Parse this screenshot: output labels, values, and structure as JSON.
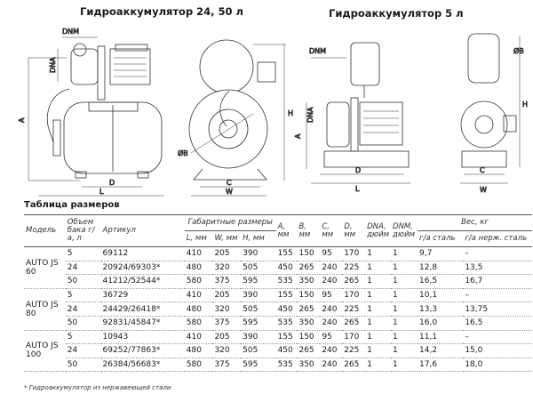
{
  "titles": {
    "left": "Гидроаккумулятор 24, 50 л",
    "right": "Гидроаккумулятор 5 л"
  },
  "drawing_labels": {
    "dnm": "DNM",
    "dna": "DNA",
    "a": "A",
    "h": "H",
    "b": "ØB",
    "d": "D",
    "l": "L",
    "c": "C",
    "w": "W"
  },
  "table": {
    "title": "Таблица размеров",
    "headers": {
      "model": "Модель",
      "volume": "Объем бака г/а, л",
      "article": "Артикул",
      "overall": "Габаритные размеры",
      "l": "L, мм",
      "w": "W, мм",
      "h": "H, мм",
      "a": "A, мм",
      "b": "B, мм",
      "c": "C, мм",
      "d": "D, мм",
      "dna": "DNA, дюйм",
      "dnm": "DNM, дюйм",
      "weight": "Вес, кг",
      "w_steel": "г/а сталь",
      "w_stainless": "г/а нерж. сталь"
    },
    "groups": [
      {
        "model": "AUTO JS 60",
        "rows": [
          [
            "5",
            "69112",
            "410",
            "205",
            "390",
            "155",
            "150",
            "95",
            "170",
            "1",
            "1",
            "9,7",
            "–"
          ],
          [
            "24",
            "20924/69303*",
            "480",
            "320",
            "505",
            "450",
            "265",
            "240",
            "225",
            "1",
            "1",
            "12,8",
            "13,5"
          ],
          [
            "50",
            "41212/52544*",
            "580",
            "375",
            "595",
            "535",
            "350",
            "240",
            "265",
            "1",
            "1",
            "16,5",
            "16,7"
          ]
        ]
      },
      {
        "model": "AUTO JS 80",
        "rows": [
          [
            "5",
            "36729",
            "410",
            "205",
            "390",
            "155",
            "150",
            "95",
            "170",
            "1",
            "1",
            "10,1",
            "–"
          ],
          [
            "24",
            "24429/26418*",
            "480",
            "320",
            "505",
            "450",
            "265",
            "240",
            "225",
            "1",
            "1",
            "13,3",
            "13,75"
          ],
          [
            "50",
            "92831/45847*",
            "580",
            "375",
            "595",
            "535",
            "350",
            "240",
            "265",
            "1",
            "1",
            "16,0",
            "16,5"
          ]
        ]
      },
      {
        "model": "AUTO JS 100",
        "rows": [
          [
            "5",
            "10943",
            "410",
            "205",
            "390",
            "155",
            "150",
            "95",
            "170",
            "1",
            "1",
            "11,1",
            "–"
          ],
          [
            "24",
            "69252/77863*",
            "480",
            "320",
            "505",
            "450",
            "265",
            "240",
            "225",
            "1",
            "1",
            "14,2",
            "15,0"
          ],
          [
            "50",
            "26384/56683*",
            "580",
            "375",
            "595",
            "535",
            "350",
            "240",
            "265",
            "1",
            "1",
            "17,6",
            "18,0"
          ]
        ]
      }
    ],
    "footnote": "* Гидроаккумулятор из нержавеющей стали"
  }
}
